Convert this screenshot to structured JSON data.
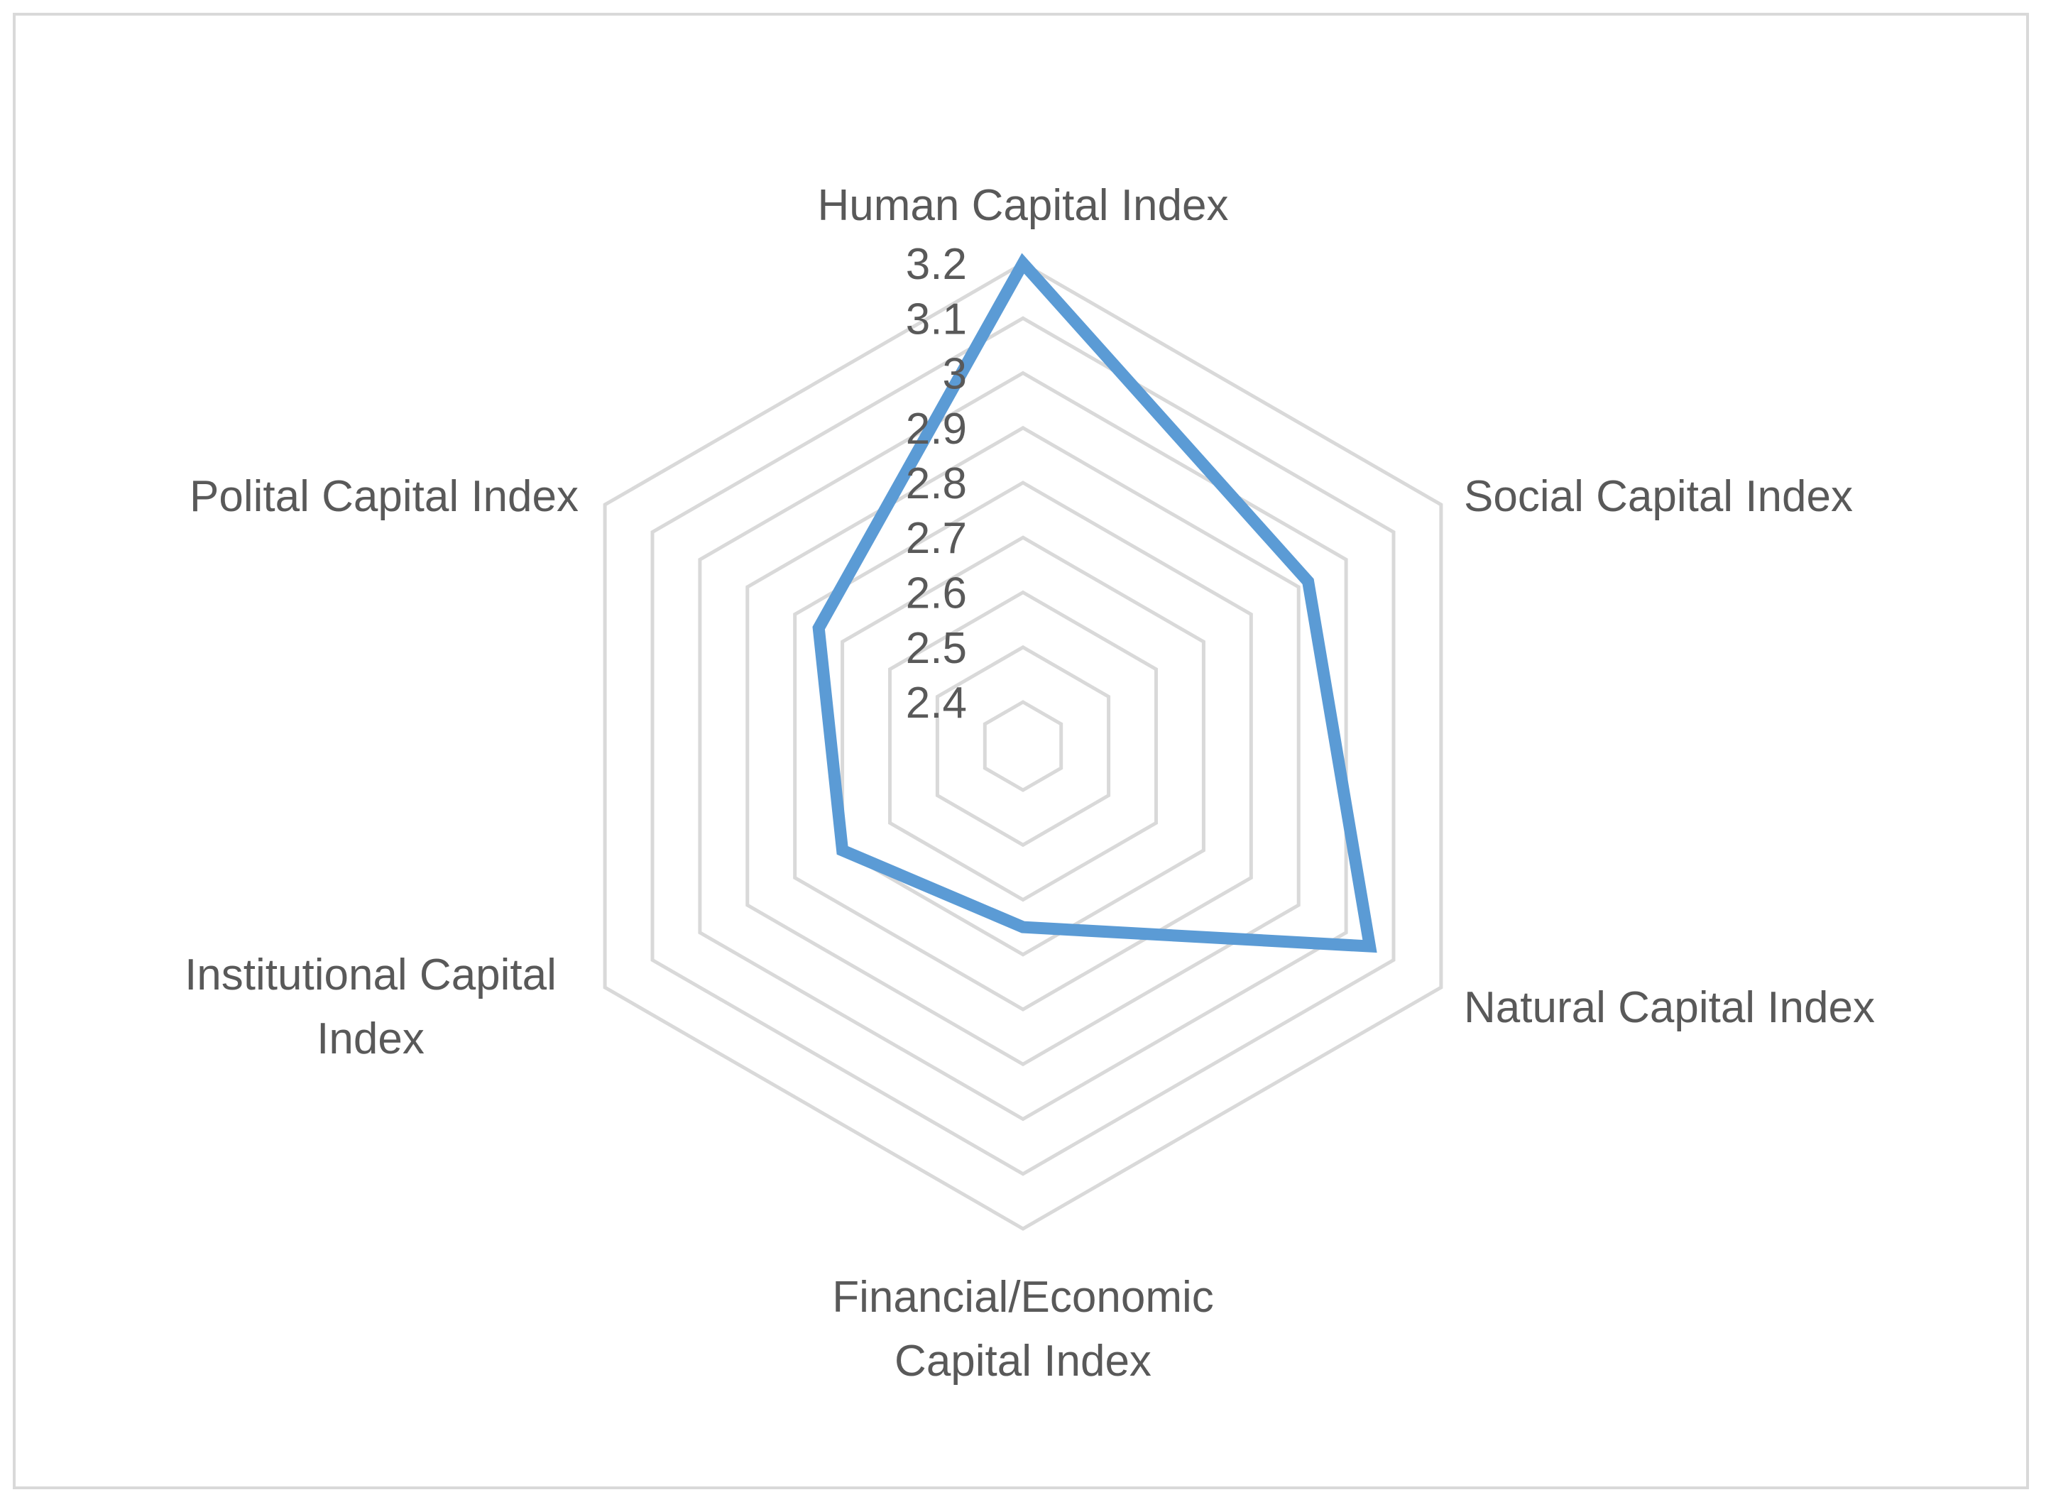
{
  "chart_data": {
    "type": "radar",
    "title": "",
    "categories": [
      "Human Capital Index",
      "Social Capital Index",
      "Natural Capital Index",
      "Financial/Economic Capital Index",
      "Institutional Capital Index",
      "Polital Capital Index"
    ],
    "category_lines": [
      [
        "Human Capital Index"
      ],
      [
        "Social Capital Index"
      ],
      [
        "Natural Capital Index"
      ],
      [
        "Financial/Economic",
        "Capital Index"
      ],
      [
        "Institutional Capital",
        "Index"
      ],
      [
        "Polital Capital Index"
      ]
    ],
    "ticks": [
      "2.4",
      "2.5",
      "2.6",
      "2.7",
      "2.8",
      "2.9",
      "3",
      "3.1",
      "3.2"
    ],
    "rlim": [
      2.4,
      3.2
    ],
    "grid": true,
    "legend": "none",
    "series": [
      {
        "values": [
          3.2,
          2.92,
          3.05,
          2.65,
          2.7,
          2.75
        ]
      }
    ],
    "colors": {
      "series": "#5b9bd5",
      "grid": "#d9d9d9",
      "text": "#595959",
      "border": "#d9d9d9"
    }
  }
}
